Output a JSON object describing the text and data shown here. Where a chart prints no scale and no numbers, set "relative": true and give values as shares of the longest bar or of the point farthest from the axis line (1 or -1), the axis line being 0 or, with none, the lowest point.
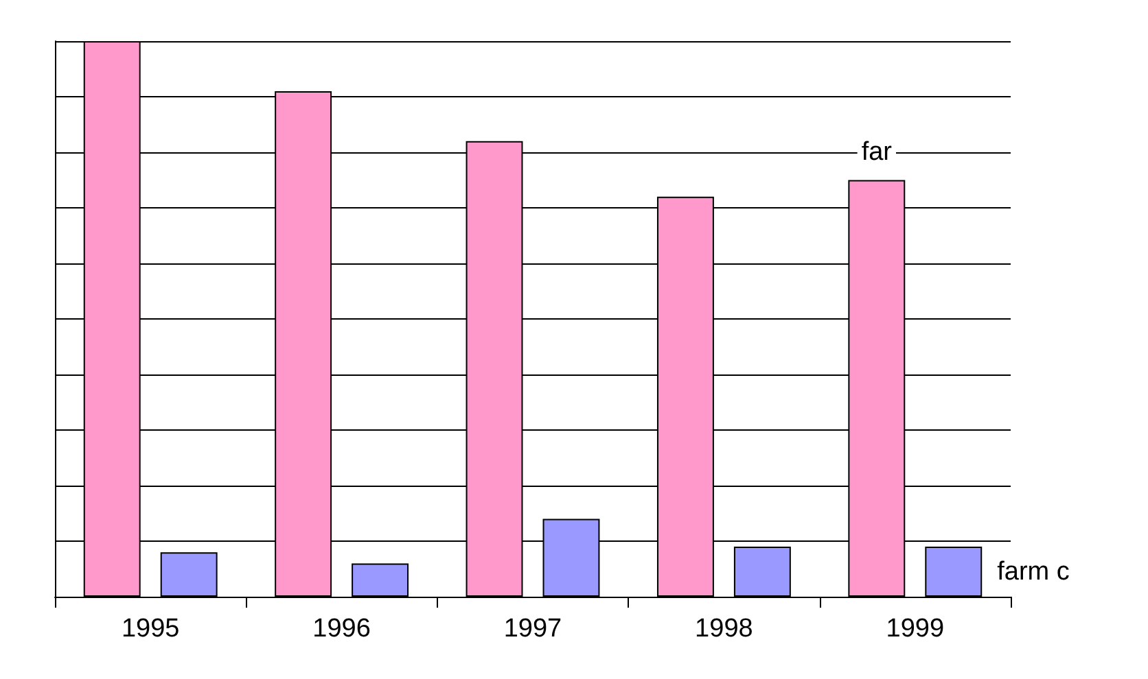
{
  "chart_data": {
    "type": "bar",
    "categories": [
      "1995",
      "1996",
      "1997",
      "1998",
      "1999"
    ],
    "series": [
      {
        "name": "far",
        "color": "#ff99cc",
        "values": [
          1,
          0.91,
          0.82,
          0.72,
          0.75
        ]
      },
      {
        "name": "farm c",
        "color": "#9999ff",
        "values": [
          0.08,
          0.06,
          0.14,
          0.09,
          0.09
        ]
      }
    ],
    "relative": true,
    "grid": "y",
    "legend": false
  }
}
